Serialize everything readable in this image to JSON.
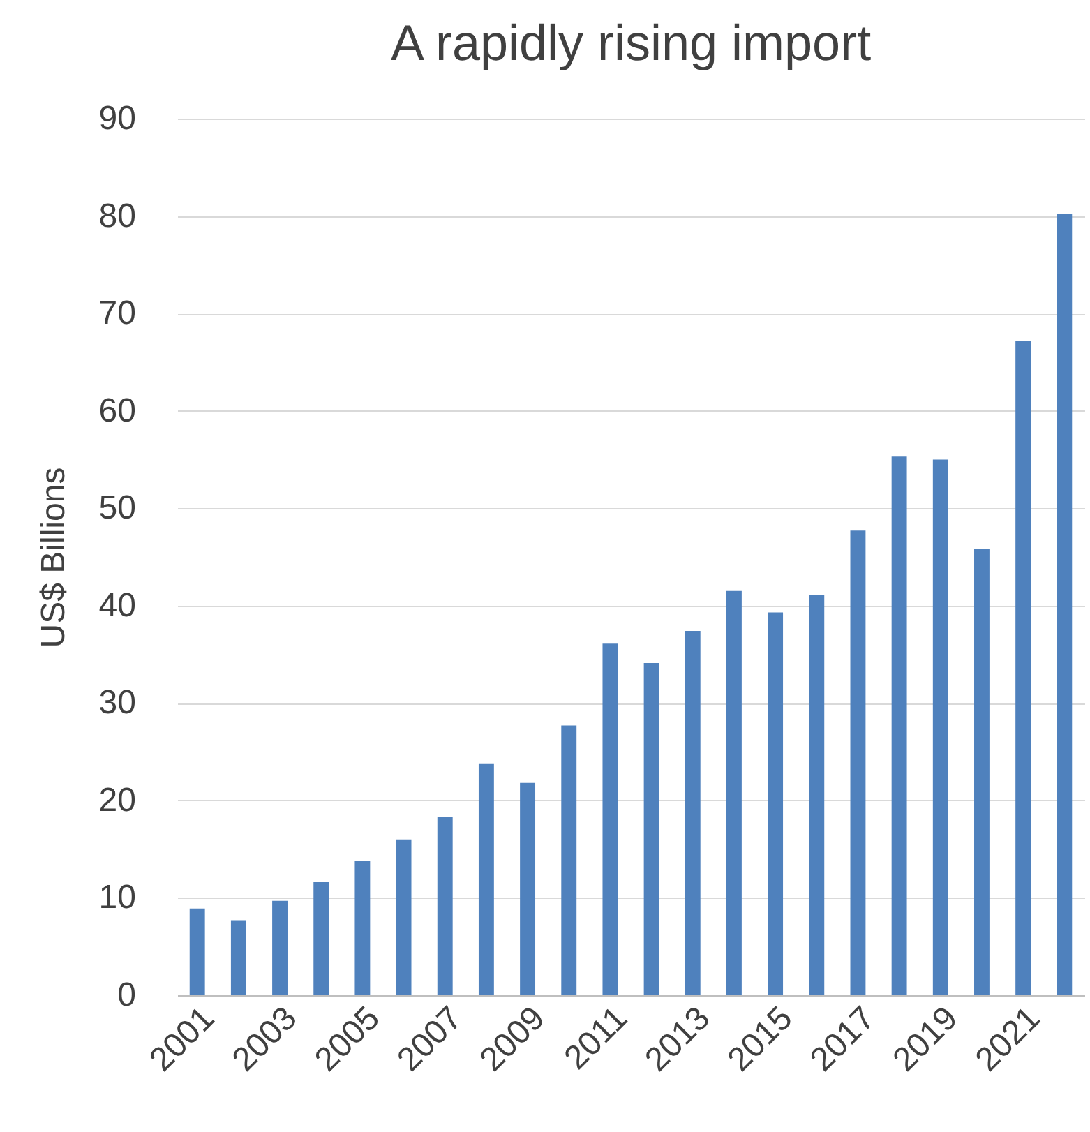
{
  "chart_data": {
    "type": "bar",
    "title": "A rapidly rising import",
    "ylabel": "US$ Billions",
    "categories": [
      "2001",
      null,
      "2003",
      null,
      "2005",
      null,
      "2007",
      null,
      "2009",
      null,
      "2011",
      null,
      "2013",
      null,
      "2015",
      null,
      "2017",
      null,
      "2019",
      null,
      "2021",
      null
    ],
    "values": [
      8.9,
      7.7,
      9.7,
      11.6,
      13.8,
      16.0,
      18.3,
      23.8,
      21.8,
      27.7,
      36.1,
      34.1,
      37.4,
      41.5,
      39.3,
      41.1,
      47.7,
      55.3,
      55.0,
      45.8,
      67.2,
      80.2
    ],
    "color": "#4f81bd",
    "ylim": [
      0,
      90
    ],
    "yticks": [
      0,
      10,
      20,
      30,
      40,
      50,
      60,
      70,
      80,
      90
    ],
    "grid": "y"
  }
}
